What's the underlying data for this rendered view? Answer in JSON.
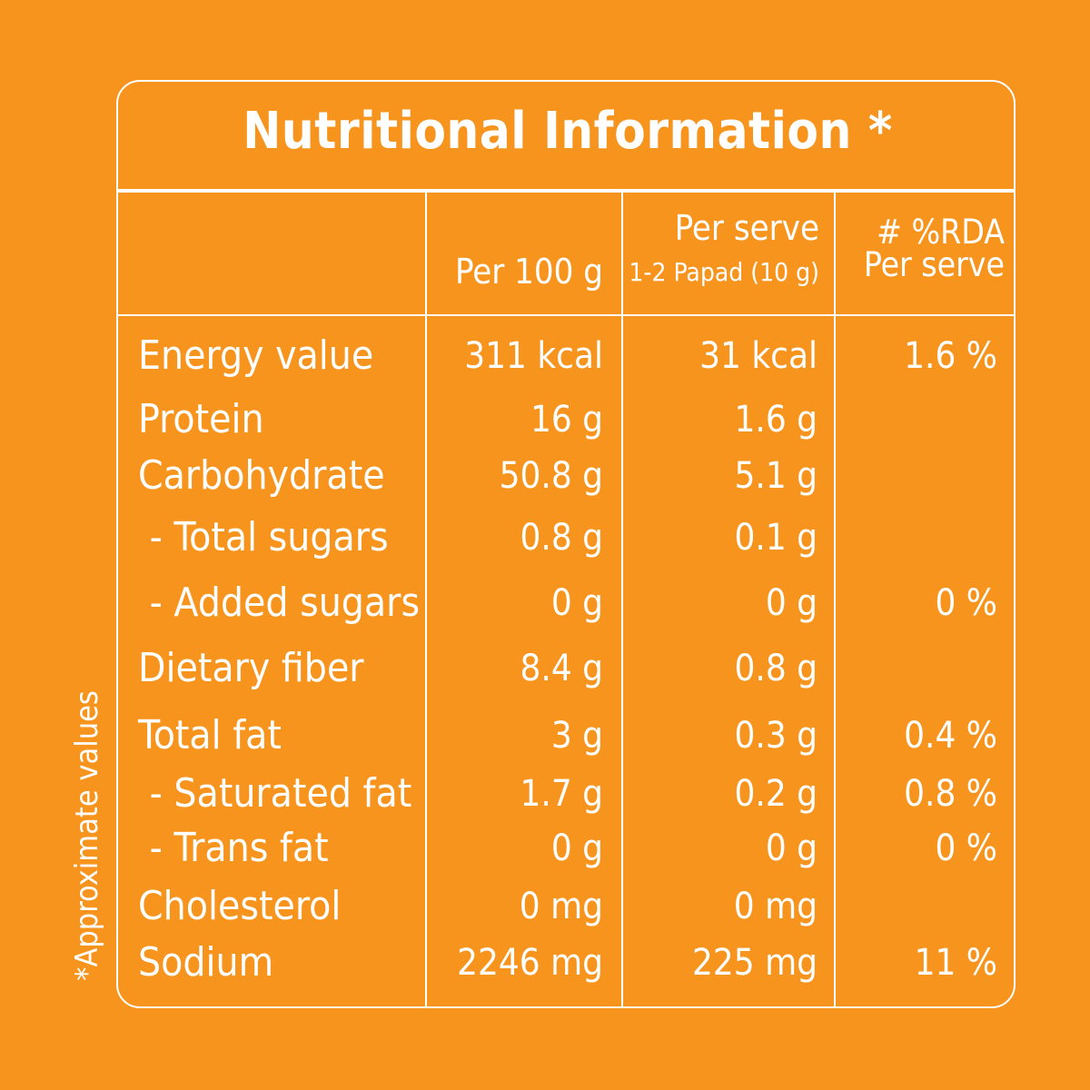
{
  "title": "Nutritional Information *",
  "side_note": "*Approximate values",
  "headers": {
    "per_100": "Per 100 g",
    "per_serve": "Per serve",
    "per_serve_sub": "1-2 Papad (10 g)",
    "rda_line1": "# %RDA",
    "rda_line2": "Per serve"
  },
  "rows": [
    {
      "name": "Energy value",
      "per100": "311 kcal",
      "serve": "31 kcal",
      "rda": "1.6 %"
    },
    {
      "name": "Protein",
      "per100": "16 g",
      "serve": "1.6 g",
      "rda": ""
    },
    {
      "name": "Carbohydrate",
      "per100": "50.8 g",
      "serve": "5.1 g",
      "rda": ""
    },
    {
      "name": " - Total sugars",
      "per100": "0.8 g",
      "serve": "0.1 g",
      "rda": ""
    },
    {
      "name": " - Added sugars",
      "per100": "0 g",
      "serve": "0 g",
      "rda": "0 %"
    },
    {
      "name": "Dietary fiber",
      "per100": "8.4 g",
      "serve": "0.8 g",
      "rda": ""
    },
    {
      "name": "Total fat",
      "per100": "3 g",
      "serve": "0.3 g",
      "rda": "0.4 %"
    },
    {
      "name": " - Saturated fat",
      "per100": "1.7 g",
      "serve": "0.2 g",
      "rda": "0.8 %"
    },
    {
      "name": " - Trans fat",
      "per100": "0 g",
      "serve": "0 g",
      "rda": "0 %"
    },
    {
      "name": "Cholesterol",
      "per100": "0 mg",
      "serve": "0 mg",
      "rda": ""
    },
    {
      "name": "Sodium",
      "per100": "2246 mg",
      "serve": "225 mg",
      "rda": "11 %"
    }
  ],
  "colors": {
    "background": "#F7941D",
    "foreground": "#FFFFFF"
  }
}
